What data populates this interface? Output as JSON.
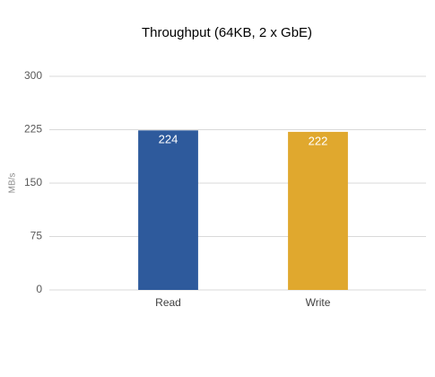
{
  "chart_data": {
    "type": "bar",
    "title": "Throughput (64KB, 2 x GbE)",
    "y_label": "MB/s",
    "categories": [
      "Read",
      "Write"
    ],
    "values": [
      224,
      222
    ],
    "colors": [
      "#2e5a9c",
      "#e0a82e"
    ],
    "ylim": [
      0,
      300
    ],
    "yticks": [
      0,
      75,
      150,
      225,
      300
    ],
    "grid": true
  }
}
